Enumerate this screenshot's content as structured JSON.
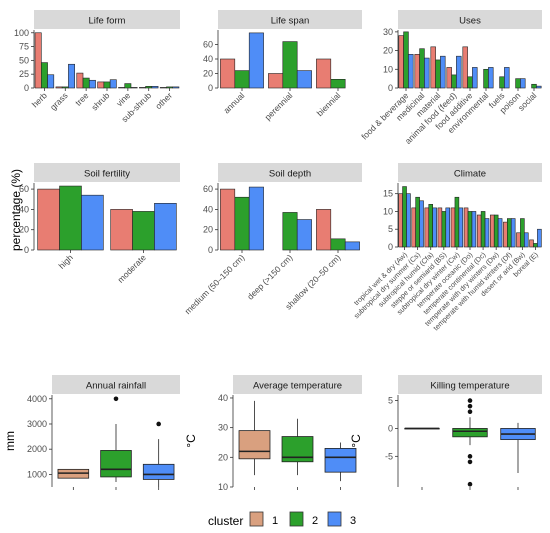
{
  "figure": {
    "y_label_bar": "percentage (%)",
    "legend_title": "cluster",
    "clusters": [
      "1",
      "2",
      "3"
    ],
    "colors": {
      "c1": "#E87D72",
      "c2": "#2CA02C",
      "c3": "#4F8DF7",
      "c1_box": "#D9A07F"
    }
  },
  "chart_data": [
    {
      "type": "bar",
      "title": "Life form",
      "categories": [
        "herb",
        "grass",
        "tree",
        "shrub",
        "vine",
        "sub-shrub",
        "other"
      ],
      "series": [
        {
          "name": "1",
          "values": [
            100,
            2,
            27,
            11,
            1,
            1,
            1
          ]
        },
        {
          "name": "2",
          "values": [
            46,
            2,
            18,
            11,
            8,
            3,
            2
          ]
        },
        {
          "name": "3",
          "values": [
            24,
            43,
            14,
            15,
            1,
            3,
            2
          ]
        }
      ],
      "ylim": [
        0,
        105
      ],
      "yticks": [
        0,
        25,
        50,
        75,
        100
      ]
    },
    {
      "type": "bar",
      "title": "Life span",
      "categories": [
        "annual",
        "perennial",
        "biennial"
      ],
      "series": [
        {
          "name": "1",
          "values": [
            40,
            20,
            40
          ]
        },
        {
          "name": "2",
          "values": [
            24,
            64,
            12
          ]
        },
        {
          "name": "3",
          "values": [
            76,
            24,
            0
          ]
        }
      ],
      "ylim": [
        0,
        80
      ],
      "yticks": [
        0,
        20,
        40,
        60
      ]
    },
    {
      "type": "bar",
      "title": "Uses",
      "categories": [
        "food & beverage",
        "medicinal",
        "material",
        "animal food (feed)",
        "food additive",
        "environmental",
        "fuels",
        "poison",
        "social"
      ],
      "series": [
        {
          "name": "1",
          "values": [
            28,
            18,
            22,
            11,
            22,
            0,
            0,
            0,
            0
          ]
        },
        {
          "name": "2",
          "values": [
            30,
            21,
            15,
            7,
            6,
            10,
            6,
            5,
            2
          ]
        },
        {
          "name": "3",
          "values": [
            18,
            16,
            17,
            17,
            11,
            11,
            11,
            5,
            1
          ]
        }
      ],
      "ylim": [
        0,
        31
      ],
      "yticks": [
        0,
        10,
        20,
        30
      ]
    },
    {
      "type": "bar",
      "title": "Soil fertility",
      "categories": [
        "high",
        "moderate"
      ],
      "series": [
        {
          "name": "1",
          "values": [
            60,
            40
          ]
        },
        {
          "name": "2",
          "values": [
            63,
            38
          ]
        },
        {
          "name": "3",
          "values": [
            54,
            46
          ]
        }
      ],
      "ylim": [
        0,
        66
      ],
      "yticks": [
        0,
        20,
        40,
        60
      ]
    },
    {
      "type": "bar",
      "title": "Soil depth",
      "categories": [
        "medium (50–150 cm)",
        "deep (>150 cm)",
        "shallow (20–50 cm)"
      ],
      "series": [
        {
          "name": "1",
          "values": [
            60,
            0,
            40
          ]
        },
        {
          "name": "2",
          "values": [
            52,
            37,
            11
          ]
        },
        {
          "name": "3",
          "values": [
            62,
            30,
            8
          ]
        }
      ],
      "ylim": [
        0,
        66
      ],
      "yticks": [
        0,
        20,
        40,
        60
      ]
    },
    {
      "type": "bar",
      "title": "Climate",
      "categories": [
        "tropical wet & dry (Aw)",
        "subtropical dry summer (Cs)",
        "subtropical humid (Cfa)",
        "steppe or semiarid (BS)",
        "subtropical dry winter (Cw)",
        "temperate oceanic (Do)",
        "temperate continental (Dc)",
        "temperate with dry winters (Dw)",
        "temperate with humid winters (Df)",
        "desert or arid (Bw)",
        "boreal (E)"
      ],
      "series": [
        {
          "name": "1",
          "values": [
            15,
            11,
            11,
            11,
            11,
            11,
            9,
            9,
            7,
            4,
            2
          ]
        },
        {
          "name": "2",
          "values": [
            17,
            14,
            12,
            10,
            14,
            10,
            10,
            9,
            8,
            8,
            1
          ]
        },
        {
          "name": "3",
          "values": [
            15,
            13,
            11,
            11,
            11,
            10,
            8,
            8,
            8,
            4,
            5
          ]
        }
      ],
      "ylim": [
        0,
        18
      ],
      "yticks": [
        0,
        5,
        10,
        15
      ]
    },
    {
      "type": "box",
      "title": "Annual rainfall",
      "ylabel": "mm",
      "groups": [
        "1",
        "2",
        "3"
      ],
      "boxes": [
        {
          "group": "1",
          "min": null,
          "q1": 850,
          "median": 1050,
          "q3": 1200,
          "max": null,
          "outliers": []
        },
        {
          "group": "2",
          "min": 700,
          "q1": 900,
          "median": 1200,
          "q3": 1950,
          "max": 3000,
          "outliers": [
            4000
          ]
        },
        {
          "group": "3",
          "min": 500,
          "q1": 800,
          "median": 1000,
          "q3": 1400,
          "max": 2400,
          "outliers": [
            3000
          ]
        }
      ],
      "ylim": [
        500,
        4150
      ],
      "yticks": [
        1000,
        2000,
        3000,
        4000
      ]
    },
    {
      "type": "box",
      "title": "Average temperature",
      "ylabel": "°C",
      "groups": [
        "1",
        "2",
        "3"
      ],
      "boxes": [
        {
          "group": "1",
          "min": 14,
          "q1": 19.5,
          "median": 22,
          "q3": 29,
          "max": 39,
          "outliers": []
        },
        {
          "group": "2",
          "min": 14,
          "q1": 18.5,
          "median": 20,
          "q3": 27,
          "max": 33,
          "outliers": []
        },
        {
          "group": "3",
          "min": 12,
          "q1": 15,
          "median": 20,
          "q3": 23,
          "max": 25,
          "outliers": []
        }
      ],
      "ylim": [
        10,
        41
      ],
      "yticks": [
        10,
        20,
        30,
        40
      ]
    },
    {
      "type": "box",
      "title": "Killing temperature",
      "ylabel": "°C",
      "groups": [
        "1",
        "2",
        "3"
      ],
      "boxes": [
        {
          "group": "1",
          "min": 0,
          "q1": 0,
          "median": 0,
          "q3": 0,
          "max": 0,
          "outliers": []
        },
        {
          "group": "2",
          "min": -3,
          "q1": -1.5,
          "median": -0.5,
          "q3": 0,
          "max": 2,
          "outliers": [
            5,
            4,
            3,
            -5,
            -6,
            -10
          ]
        },
        {
          "group": "3",
          "min": -8,
          "q1": -2,
          "median": -1,
          "q3": 0,
          "max": 1,
          "outliers": []
        }
      ],
      "ylim": [
        -10.5,
        6
      ],
      "yticks": [
        5,
        0,
        -5
      ]
    }
  ]
}
